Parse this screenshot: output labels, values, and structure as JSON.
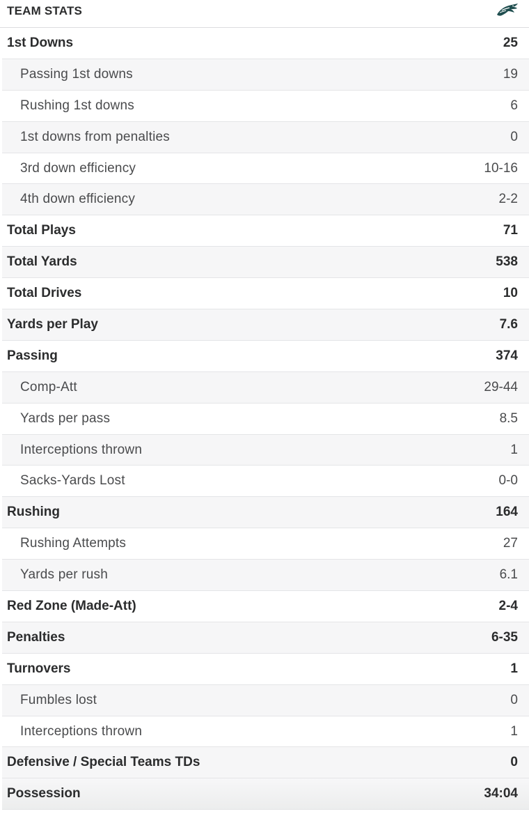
{
  "header": {
    "title": "TEAM STATS",
    "logo_icon": "eagle-head-icon",
    "logo_color": "#1f4e4f"
  },
  "rows": [
    {
      "label": "1st Downs",
      "value": "25",
      "level": "main"
    },
    {
      "label": "Passing 1st downs",
      "value": "19",
      "level": "sub"
    },
    {
      "label": "Rushing 1st downs",
      "value": "6",
      "level": "sub"
    },
    {
      "label": "1st downs from penalties",
      "value": "0",
      "level": "sub"
    },
    {
      "label": "3rd down efficiency",
      "value": "10-16",
      "level": "sub"
    },
    {
      "label": "4th down efficiency",
      "value": "2-2",
      "level": "sub"
    },
    {
      "label": "Total Plays",
      "value": "71",
      "level": "main"
    },
    {
      "label": "Total Yards",
      "value": "538",
      "level": "main"
    },
    {
      "label": "Total Drives",
      "value": "10",
      "level": "main"
    },
    {
      "label": "Yards per Play",
      "value": "7.6",
      "level": "main"
    },
    {
      "label": "Passing",
      "value": "374",
      "level": "main"
    },
    {
      "label": "Comp-Att",
      "value": "29-44",
      "level": "sub"
    },
    {
      "label": "Yards per pass",
      "value": "8.5",
      "level": "sub"
    },
    {
      "label": "Interceptions thrown",
      "value": "1",
      "level": "sub"
    },
    {
      "label": "Sacks-Yards Lost",
      "value": "0-0",
      "level": "sub"
    },
    {
      "label": "Rushing",
      "value": "164",
      "level": "main"
    },
    {
      "label": "Rushing Attempts",
      "value": "27",
      "level": "sub"
    },
    {
      "label": "Yards per rush",
      "value": "6.1",
      "level": "sub"
    },
    {
      "label": "Red Zone (Made-Att)",
      "value": "2-4",
      "level": "main"
    },
    {
      "label": "Penalties",
      "value": "6-35",
      "level": "main"
    },
    {
      "label": "Turnovers",
      "value": "1",
      "level": "main"
    },
    {
      "label": "Fumbles lost",
      "value": "0",
      "level": "sub"
    },
    {
      "label": "Interceptions thrown",
      "value": "1",
      "level": "sub"
    },
    {
      "label": "Defensive / Special Teams TDs",
      "value": "0",
      "level": "main"
    },
    {
      "label": "Possession",
      "value": "34:04",
      "level": "main"
    }
  ]
}
